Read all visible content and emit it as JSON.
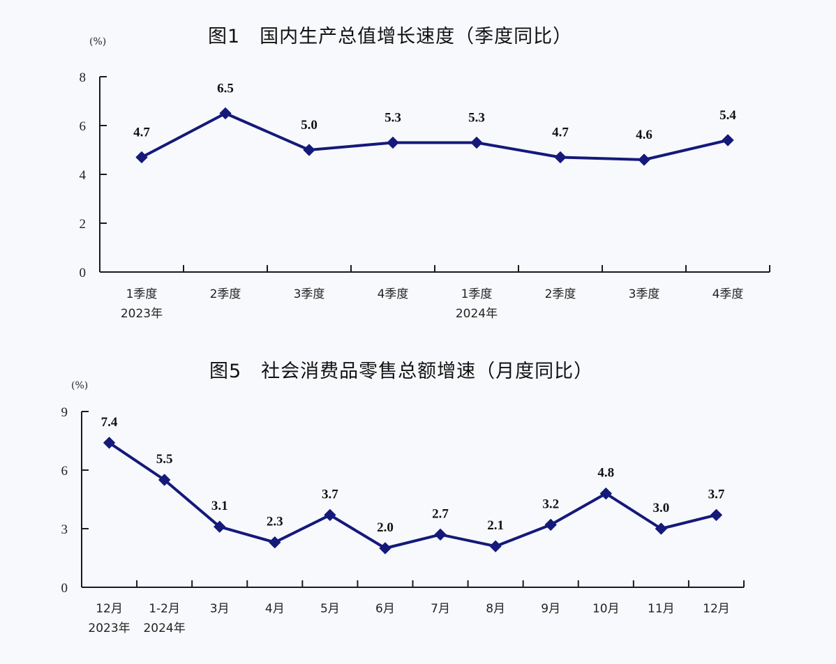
{
  "chart_data": [
    {
      "type": "line",
      "title": "图1　国内生产总值增长速度（季度同比）",
      "unit": "(%)",
      "xlabel": "",
      "ylabel": "(%)",
      "ylim": [
        0,
        8
      ],
      "yticks": [
        0,
        2,
        4,
        6,
        8
      ],
      "grid": false,
      "legend": null,
      "categories": [
        "1季度",
        "2季度",
        "3季度",
        "4季度",
        "1季度",
        "2季度",
        "3季度",
        "4季度"
      ],
      "category_sublabels": [
        "2023年",
        "",
        "",
        "",
        "2024年",
        "",
        "",
        ""
      ],
      "series": [
        {
          "name": "国内生产总值增长速度",
          "values": [
            4.7,
            6.5,
            5.0,
            5.3,
            5.3,
            4.7,
            4.6,
            5.4
          ],
          "labels": [
            "4.7",
            "6.5",
            "5.0",
            "5.3",
            "5.3",
            "4.7",
            "4.6",
            "5.4"
          ],
          "color": "#14197a",
          "marker": "diamond"
        }
      ]
    },
    {
      "type": "line",
      "title": "图5　社会消费品零售总额增速（月度同比）",
      "unit": "(%)",
      "xlabel": "",
      "ylabel": "(%)",
      "ylim": [
        0,
        9
      ],
      "yticks": [
        0,
        3,
        6,
        9
      ],
      "grid": false,
      "legend": null,
      "categories": [
        "12月",
        "1-2月",
        "3月",
        "4月",
        "5月",
        "6月",
        "7月",
        "8月",
        "9月",
        "10月",
        "11月",
        "12月"
      ],
      "category_sublabels": [
        "2023年",
        "2024年",
        "",
        "",
        "",
        "",
        "",
        "",
        "",
        "",
        "",
        ""
      ],
      "series": [
        {
          "name": "社会消费品零售总额增速",
          "values": [
            7.4,
            5.5,
            3.1,
            2.3,
            3.7,
            2.0,
            2.7,
            2.1,
            3.2,
            4.8,
            3.0,
            3.7
          ],
          "labels": [
            "7.4",
            "5.5",
            "3.1",
            "2.3",
            "3.7",
            "2.0",
            "2.7",
            "2.1",
            "3.2",
            "4.8",
            "3.0",
            "3.7"
          ],
          "color": "#14197a",
          "marker": "diamond"
        }
      ]
    }
  ]
}
